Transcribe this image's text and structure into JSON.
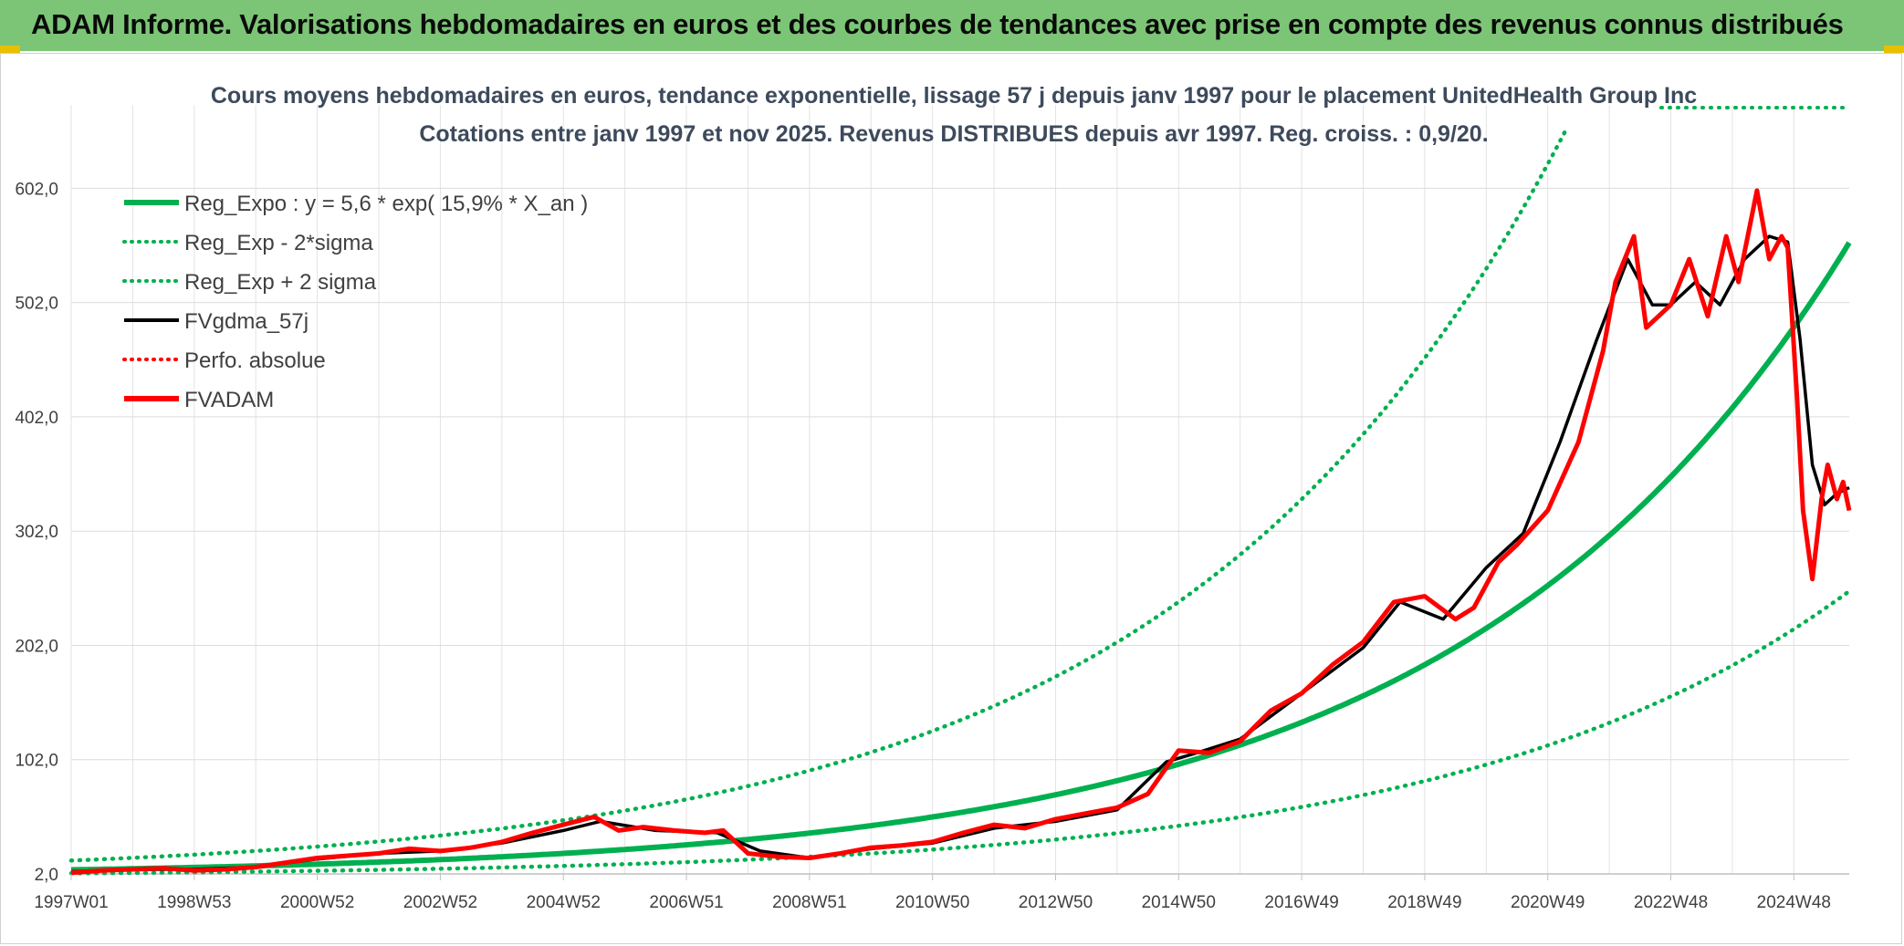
{
  "header": {
    "title": "ADAM Informe. Valorisations hebdomadaires en euros et des courbes de tendances avec prise en compte des revenus connus distribués"
  },
  "colors": {
    "banner": "#7cc576",
    "reg_green": "#00b050",
    "fvadam_red": "#ff0000",
    "fvgdma_black": "#000000"
  },
  "chart_data": {
    "type": "line",
    "title_line1": "Cours moyens hebdomadaires en euros, tendance exponentielle, lissage 57 j depuis janv 1997 pour le placement UnitedHealth Group Inc",
    "title_line2": "Cotations entre janv 1997 et nov 2025. Revenus DISTRIBUES depuis avr 1997. Reg. croiss. : 0,9/20.",
    "ylim": [
      2,
      655
    ],
    "y_ticks": [
      "2,0",
      "102,0",
      "202,0",
      "302,0",
      "402,0",
      "502,0",
      "602,0"
    ],
    "y_tick_values": [
      2,
      102,
      202,
      302,
      402,
      502,
      602
    ],
    "xlim": [
      1997.0,
      2025.9
    ],
    "x_ticks": [
      "1997W01",
      "1998W53",
      "2000W52",
      "2002W52",
      "2004W52",
      "2006W51",
      "2008W51",
      "2010W50",
      "2012W50",
      "2014W50",
      "2016W49",
      "2018W49",
      "2020W49",
      "2022W48",
      "2024W48"
    ],
    "x_tick_values": [
      1997.0,
      1999.0,
      2001.0,
      2003.0,
      2005.0,
      2007.0,
      2009.0,
      2011.0,
      2013.0,
      2015.0,
      2017.0,
      2019.0,
      2021.0,
      2023.0,
      2025.0
    ],
    "legend_position": "top-left",
    "legend": [
      {
        "name": "Reg_Expo : y = 5,6 * exp( 15,9% *  X_an )",
        "style": "solid-thick",
        "color": "#00b050"
      },
      {
        "name": "Reg_Exp - 2*sigma",
        "style": "dotted",
        "color": "#00b050"
      },
      {
        "name": "Reg_Exp + 2 sigma",
        "style": "dotted",
        "color": "#00b050"
      },
      {
        "name": "FVgdma_57j",
        "style": "solid",
        "color": "#000000"
      },
      {
        "name": "Perfo. absolue",
        "style": "dotted",
        "color": "#ff0000"
      },
      {
        "name": "FVADAM",
        "style": "solid-thick",
        "color": "#ff0000"
      }
    ],
    "regression": {
      "a": 5.6,
      "rate": 0.159,
      "lower_factor": 0.45,
      "upper_factor": 2.45
    },
    "series": [
      {
        "name": "FVADAM",
        "x": [
          1997.0,
          1997.5,
          1998.0,
          1998.5,
          1999.0,
          1999.5,
          2000.0,
          2000.5,
          2001.0,
          2001.5,
          2002.0,
          2002.5,
          2003.0,
          2003.5,
          2004.0,
          2004.5,
          2005.0,
          2005.5,
          2005.9,
          2006.3,
          2006.8,
          2007.3,
          2007.6,
          2008.0,
          2008.5,
          2009.0,
          2009.5,
          2010.0,
          2010.5,
          2011.0,
          2011.5,
          2012.0,
          2012.5,
          2013.0,
          2013.5,
          2014.0,
          2014.5,
          2014.8,
          2015.0,
          2015.5,
          2016.0,
          2016.5,
          2017.0,
          2017.5,
          2018.0,
          2018.5,
          2019.0,
          2019.5,
          2019.8,
          2020.2,
          2020.5,
          2021.0,
          2021.5,
          2021.9,
          2022.1,
          2022.4,
          2022.6,
          2022.8,
          2023.0,
          2023.3,
          2023.6,
          2023.9,
          2024.1,
          2024.4,
          2024.6,
          2024.8,
          2024.9,
          2025.05,
          2025.15,
          2025.3,
          2025.45,
          2025.55,
          2025.7,
          2025.8,
          2025.9
        ],
        "values": [
          3,
          5,
          6,
          7,
          5,
          6,
          8,
          12,
          16,
          18,
          20,
          24,
          22,
          25,
          30,
          38,
          45,
          52,
          40,
          43,
          40,
          38,
          40,
          20,
          17,
          16,
          20,
          25,
          27,
          30,
          38,
          45,
          42,
          50,
          55,
          60,
          72,
          95,
          110,
          108,
          118,
          145,
          160,
          185,
          205,
          240,
          245,
          225,
          235,
          275,
          290,
          320,
          380,
          460,
          520,
          560,
          480,
          490,
          500,
          540,
          490,
          560,
          520,
          600,
          540,
          560,
          550,
          420,
          320,
          260,
          330,
          360,
          330,
          345,
          320
        ]
      },
      {
        "name": "FVgdma_57j",
        "x": [
          1997.0,
          1998.0,
          1999.0,
          2000.0,
          2001.0,
          2002.0,
          2003.0,
          2004.0,
          2005.0,
          2005.6,
          2006.5,
          2007.5,
          2008.2,
          2009.0,
          2010.0,
          2011.0,
          2012.0,
          2013.0,
          2014.0,
          2014.8,
          2015.3,
          2016.0,
          2017.0,
          2018.0,
          2018.6,
          2019.3,
          2020.0,
          2020.6,
          2021.2,
          2021.8,
          2022.3,
          2022.7,
          2023.0,
          2023.4,
          2023.8,
          2024.2,
          2024.6,
          2024.9,
          2025.1,
          2025.3,
          2025.5,
          2025.7,
          2025.9
        ],
        "values": [
          4,
          6,
          6,
          8,
          15,
          20,
          22,
          29,
          40,
          48,
          40,
          38,
          22,
          16,
          24,
          29,
          42,
          48,
          58,
          100,
          108,
          120,
          160,
          200,
          240,
          225,
          270,
          300,
          380,
          470,
          540,
          500,
          500,
          520,
          500,
          540,
          560,
          555,
          470,
          360,
          325,
          335,
          340
        ]
      }
    ]
  }
}
